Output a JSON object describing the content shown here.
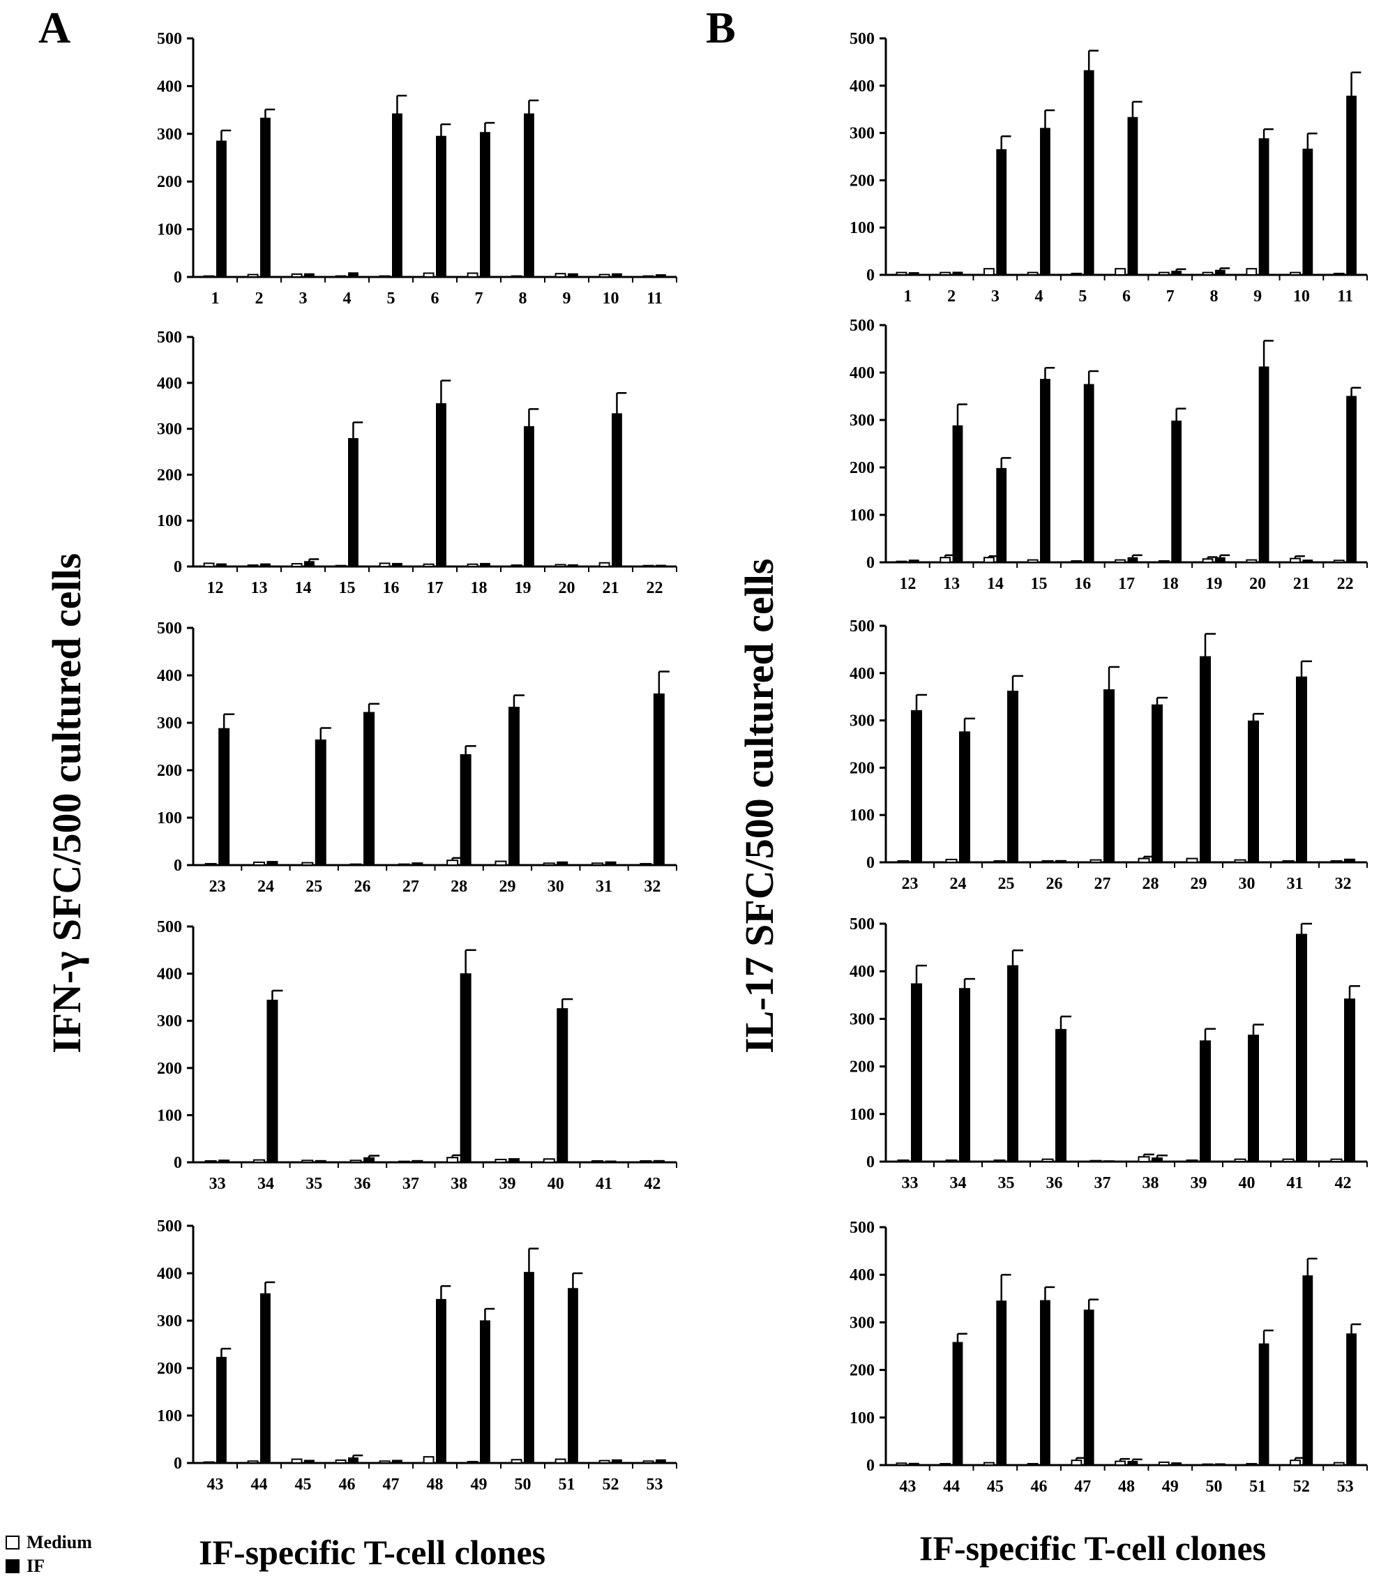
{
  "colors": {
    "medium": "#ffffff",
    "if": "#000000",
    "axis": "#000000"
  },
  "labels": {
    "panel_a": "A",
    "panel_b": "B",
    "ylabel_a": "IFN-γ SFC/500 cultured cells",
    "ylabel_b": "IL-17 SFC/500 cultured cells",
    "xlabel_a": "IF-specific T-cell clones",
    "xlabel_b": "IF-specific T-cell clones"
  },
  "legend": [
    {
      "label": "Medium",
      "color": "#ffffff"
    },
    {
      "label": "IF",
      "color": "#000000"
    }
  ],
  "chart_data": [
    {
      "panel": "A",
      "row": 1,
      "type": "bar",
      "ylim": [
        0,
        500
      ],
      "yticks": [
        0,
        100,
        200,
        300,
        400,
        500
      ],
      "categories": [
        "1",
        "2",
        "3",
        "4",
        "5",
        "6",
        "7",
        "8",
        "9",
        "10",
        "11"
      ],
      "series": [
        {
          "name": "Medium",
          "values": [
            2,
            5,
            6,
            2,
            2,
            8,
            8,
            2,
            7,
            5,
            2
          ],
          "errors": [
            0,
            0,
            0,
            0,
            0,
            0,
            0,
            0,
            0,
            0,
            0
          ]
        },
        {
          "name": "IF",
          "values": [
            285,
            333,
            7,
            9,
            342,
            295,
            303,
            342,
            7,
            7,
            5
          ],
          "errors": [
            22,
            18,
            0,
            0,
            38,
            25,
            20,
            28,
            0,
            0,
            0
          ]
        }
      ]
    },
    {
      "panel": "A",
      "row": 2,
      "type": "bar",
      "ylim": [
        0,
        500
      ],
      "yticks": [
        0,
        100,
        200,
        300,
        400,
        500
      ],
      "categories": [
        "12",
        "13",
        "14",
        "15",
        "16",
        "17",
        "18",
        "19",
        "20",
        "21",
        "22"
      ],
      "series": [
        {
          "name": "Medium",
          "values": [
            7,
            3,
            6,
            2,
            7,
            5,
            5,
            3,
            4,
            8,
            2
          ],
          "errors": [
            0,
            0,
            0,
            0,
            0,
            0,
            0,
            0,
            0,
            0,
            0
          ]
        },
        {
          "name": "IF",
          "values": [
            6,
            6,
            11,
            279,
            7,
            355,
            7,
            305,
            4,
            333,
            3
          ],
          "errors": [
            0,
            0,
            5,
            35,
            0,
            50,
            0,
            38,
            0,
            45,
            0
          ]
        }
      ]
    },
    {
      "panel": "A",
      "row": 3,
      "type": "bar",
      "ylim": [
        0,
        500
      ],
      "yticks": [
        0,
        100,
        200,
        300,
        400,
        500
      ],
      "categories": [
        "23",
        "24",
        "25",
        "26",
        "27",
        "28",
        "29",
        "30",
        "31",
        "32"
      ],
      "series": [
        {
          "name": "Medium",
          "values": [
            3,
            6,
            5,
            2,
            2,
            10,
            8,
            4,
            4,
            3
          ],
          "errors": [
            0,
            0,
            0,
            0,
            0,
            5,
            0,
            0,
            0,
            0
          ]
        },
        {
          "name": "IF",
          "values": [
            288,
            8,
            264,
            322,
            5,
            233,
            333,
            7,
            7,
            361
          ],
          "errors": [
            30,
            0,
            25,
            18,
            0,
            18,
            25,
            0,
            0,
            47
          ]
        }
      ]
    },
    {
      "panel": "A",
      "row": 4,
      "type": "bar",
      "ylim": [
        0,
        500
      ],
      "yticks": [
        0,
        100,
        200,
        300,
        400,
        500
      ],
      "categories": [
        "33",
        "34",
        "35",
        "36",
        "37",
        "38",
        "39",
        "40",
        "41",
        "42"
      ],
      "series": [
        {
          "name": "Medium",
          "values": [
            3,
            5,
            4,
            4,
            2,
            10,
            6,
            7,
            3,
            3
          ],
          "errors": [
            0,
            0,
            0,
            0,
            0,
            5,
            0,
            0,
            0,
            0
          ]
        },
        {
          "name": "IF",
          "values": [
            5,
            344,
            4,
            10,
            4,
            400,
            8,
            326,
            3,
            4
          ],
          "errors": [
            0,
            20,
            0,
            4,
            0,
            50,
            0,
            20,
            0,
            0
          ]
        }
      ]
    },
    {
      "panel": "A",
      "row": 5,
      "type": "bar",
      "ylim": [
        0,
        500
      ],
      "yticks": [
        0,
        100,
        200,
        300,
        400,
        500
      ],
      "categories": [
        "43",
        "44",
        "45",
        "46",
        "47",
        "48",
        "49",
        "50",
        "51",
        "52",
        "53"
      ],
      "series": [
        {
          "name": "Medium",
          "values": [
            2,
            4,
            8,
            6,
            4,
            13,
            3,
            7,
            8,
            5,
            4
          ],
          "errors": [
            0,
            0,
            0,
            0,
            0,
            0,
            0,
            0,
            0,
            0,
            0
          ]
        },
        {
          "name": "IF",
          "values": [
            223,
            357,
            6,
            11,
            6,
            345,
            300,
            402,
            368,
            7,
            7
          ],
          "errors": [
            18,
            24,
            0,
            5,
            0,
            28,
            25,
            50,
            32,
            0,
            0
          ]
        }
      ]
    },
    {
      "panel": "B",
      "row": 1,
      "type": "bar",
      "ylim": [
        0,
        500
      ],
      "yticks": [
        0,
        100,
        200,
        300,
        400,
        500
      ],
      "categories": [
        "1",
        "2",
        "3",
        "4",
        "5",
        "6",
        "7",
        "8",
        "9",
        "10",
        "11"
      ],
      "series": [
        {
          "name": "Medium",
          "values": [
            5,
            5,
            13,
            5,
            3,
            13,
            5,
            5,
            13,
            5,
            3
          ],
          "errors": [
            0,
            0,
            0,
            0,
            0,
            0,
            0,
            0,
            0,
            0,
            0
          ]
        },
        {
          "name": "IF",
          "values": [
            5,
            6,
            265,
            310,
            432,
            333,
            8,
            10,
            288,
            266,
            378
          ],
          "errors": [
            0,
            0,
            28,
            38,
            42,
            33,
            4,
            4,
            20,
            33,
            50
          ]
        }
      ]
    },
    {
      "panel": "B",
      "row": 2,
      "type": "bar",
      "ylim": [
        0,
        500
      ],
      "yticks": [
        0,
        100,
        200,
        300,
        400,
        500
      ],
      "categories": [
        "12",
        "13",
        "14",
        "15",
        "16",
        "17",
        "18",
        "19",
        "20",
        "21",
        "22"
      ],
      "series": [
        {
          "name": "Medium",
          "values": [
            2,
            10,
            10,
            5,
            3,
            5,
            3,
            7,
            5,
            8,
            4
          ],
          "errors": [
            0,
            5,
            3,
            0,
            0,
            0,
            0,
            4,
            0,
            5,
            0
          ]
        },
        {
          "name": "IF",
          "values": [
            5,
            288,
            198,
            386,
            375,
            10,
            298,
            10,
            412,
            5,
            350
          ],
          "errors": [
            0,
            45,
            22,
            24,
            28,
            5,
            26,
            5,
            55,
            0,
            18
          ]
        }
      ]
    },
    {
      "panel": "B",
      "row": 3,
      "type": "bar",
      "ylim": [
        0,
        500
      ],
      "yticks": [
        0,
        100,
        200,
        300,
        400,
        500
      ],
      "categories": [
        "23",
        "24",
        "25",
        "26",
        "27",
        "28",
        "29",
        "30",
        "31",
        "32"
      ],
      "series": [
        {
          "name": "Medium",
          "values": [
            3,
            6,
            3,
            3,
            5,
            8,
            8,
            5,
            3,
            3
          ],
          "errors": [
            0,
            0,
            0,
            0,
            0,
            4,
            0,
            0,
            0,
            0
          ]
        },
        {
          "name": "IF",
          "values": [
            321,
            276,
            362,
            4,
            365,
            333,
            435,
            299,
            392,
            7
          ],
          "errors": [
            33,
            28,
            32,
            0,
            48,
            15,
            48,
            15,
            33,
            0
          ]
        }
      ]
    },
    {
      "panel": "B",
      "row": 4,
      "type": "bar",
      "ylim": [
        0,
        500
      ],
      "yticks": [
        0,
        100,
        200,
        300,
        400,
        500
      ],
      "categories": [
        "33",
        "34",
        "35",
        "36",
        "37",
        "38",
        "39",
        "40",
        "41",
        "42"
      ],
      "series": [
        {
          "name": "Medium",
          "values": [
            3,
            3,
            3,
            5,
            2,
            10,
            3,
            5,
            5,
            5
          ],
          "errors": [
            0,
            0,
            0,
            0,
            0,
            5,
            0,
            0,
            0,
            0
          ]
        },
        {
          "name": "IF",
          "values": [
            374,
            364,
            412,
            278,
            2,
            8,
            254,
            266,
            478,
            342
          ],
          "errors": [
            38,
            20,
            32,
            27,
            0,
            5,
            25,
            22,
            22,
            27
          ]
        }
      ]
    },
    {
      "panel": "B",
      "row": 5,
      "type": "bar",
      "ylim": [
        0,
        500
      ],
      "yticks": [
        0,
        100,
        200,
        300,
        400,
        500
      ],
      "categories": [
        "43",
        "44",
        "45",
        "46",
        "47",
        "48",
        "49",
        "50",
        "51",
        "52",
        "53"
      ],
      "series": [
        {
          "name": "Medium",
          "values": [
            4,
            3,
            5,
            3,
            10,
            8,
            6,
            2,
            3,
            10,
            5
          ],
          "errors": [
            0,
            0,
            0,
            0,
            5,
            5,
            0,
            0,
            0,
            5,
            0
          ]
        },
        {
          "name": "IF",
          "values": [
            4,
            258,
            345,
            346,
            326,
            8,
            5,
            3,
            255,
            398,
            276
          ],
          "errors": [
            0,
            18,
            55,
            28,
            22,
            4,
            0,
            0,
            28,
            36,
            20
          ]
        }
      ]
    }
  ]
}
